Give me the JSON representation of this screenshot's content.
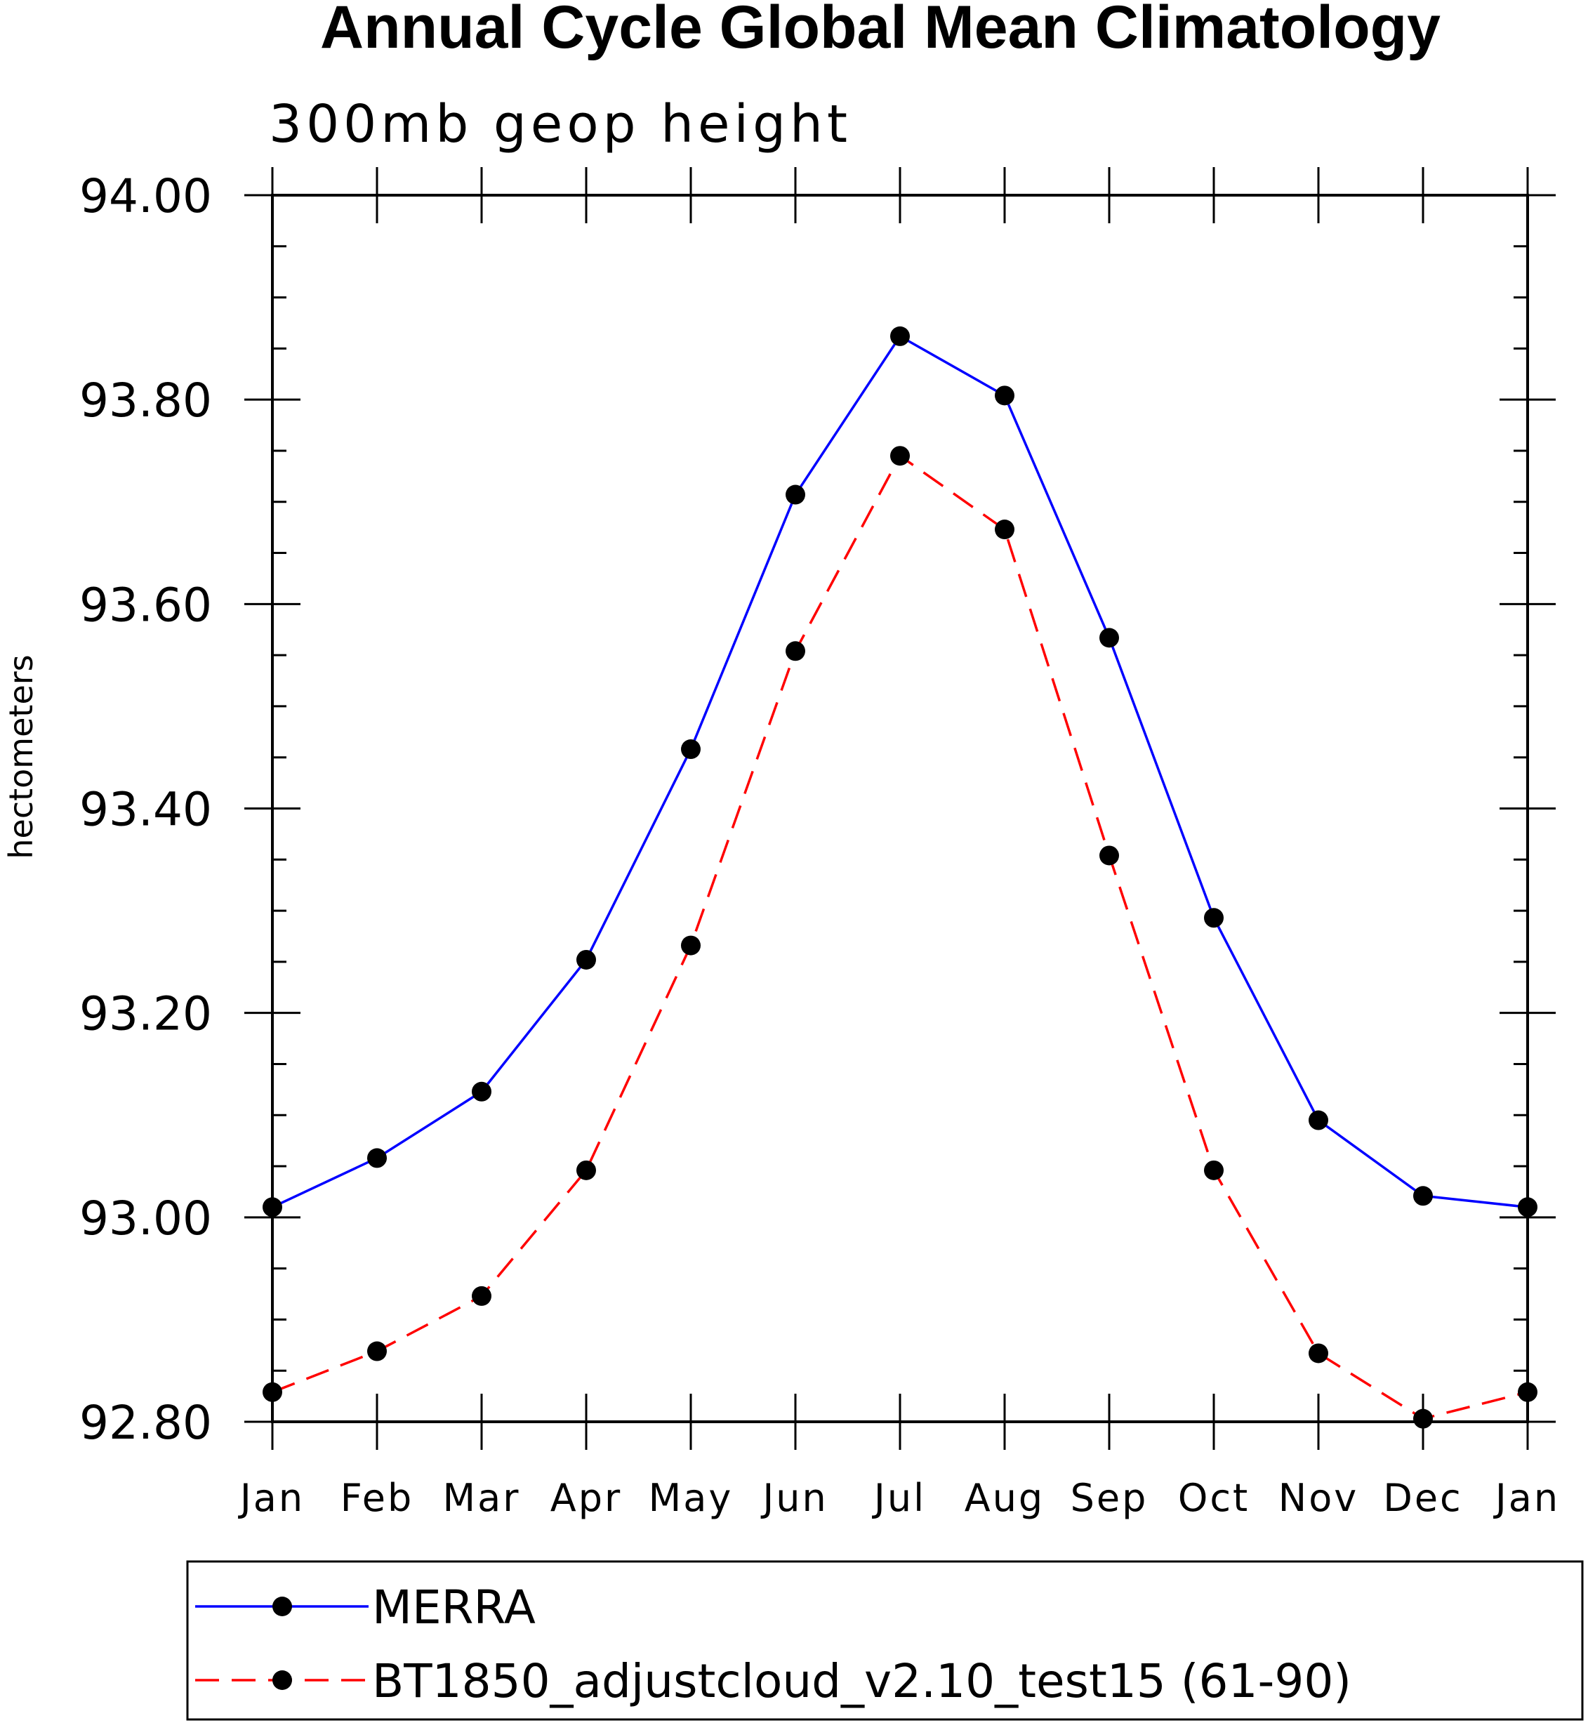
{
  "chart_data": {
    "type": "line",
    "title": "Annual Cycle Global Mean Climatology",
    "subtitle": "300mb geop height",
    "ylabel": "hectometers",
    "xlabel": "",
    "categories": [
      "Jan",
      "Feb",
      "Mar",
      "Apr",
      "May",
      "Jun",
      "Jul",
      "Aug",
      "Sep",
      "Oct",
      "Nov",
      "Dec",
      "Jan"
    ],
    "ylim": [
      92.8,
      94.0
    ],
    "yticks": [
      "92.80",
      "93.00",
      "93.20",
      "93.40",
      "93.60",
      "93.80",
      "94.00"
    ],
    "grid": false,
    "legend_position": "bottom",
    "series": [
      {
        "name": "MERRA",
        "color": "#0000ff",
        "line_style": "solid",
        "marker": "filled-circle",
        "values": [
          93.01,
          93.058,
          93.123,
          93.252,
          93.458,
          93.707,
          93.862,
          93.804,
          93.567,
          93.293,
          93.095,
          93.021,
          93.01
        ]
      },
      {
        "name": "BT1850_adjustcloud_v2.10_test15 (61-90)",
        "color": "#ff0000",
        "line_style": "dashed",
        "marker": "filled-circle",
        "values": [
          92.829,
          92.869,
          92.923,
          93.046,
          93.266,
          93.554,
          93.745,
          93.673,
          93.354,
          93.046,
          92.867,
          92.803,
          92.829
        ]
      }
    ]
  }
}
